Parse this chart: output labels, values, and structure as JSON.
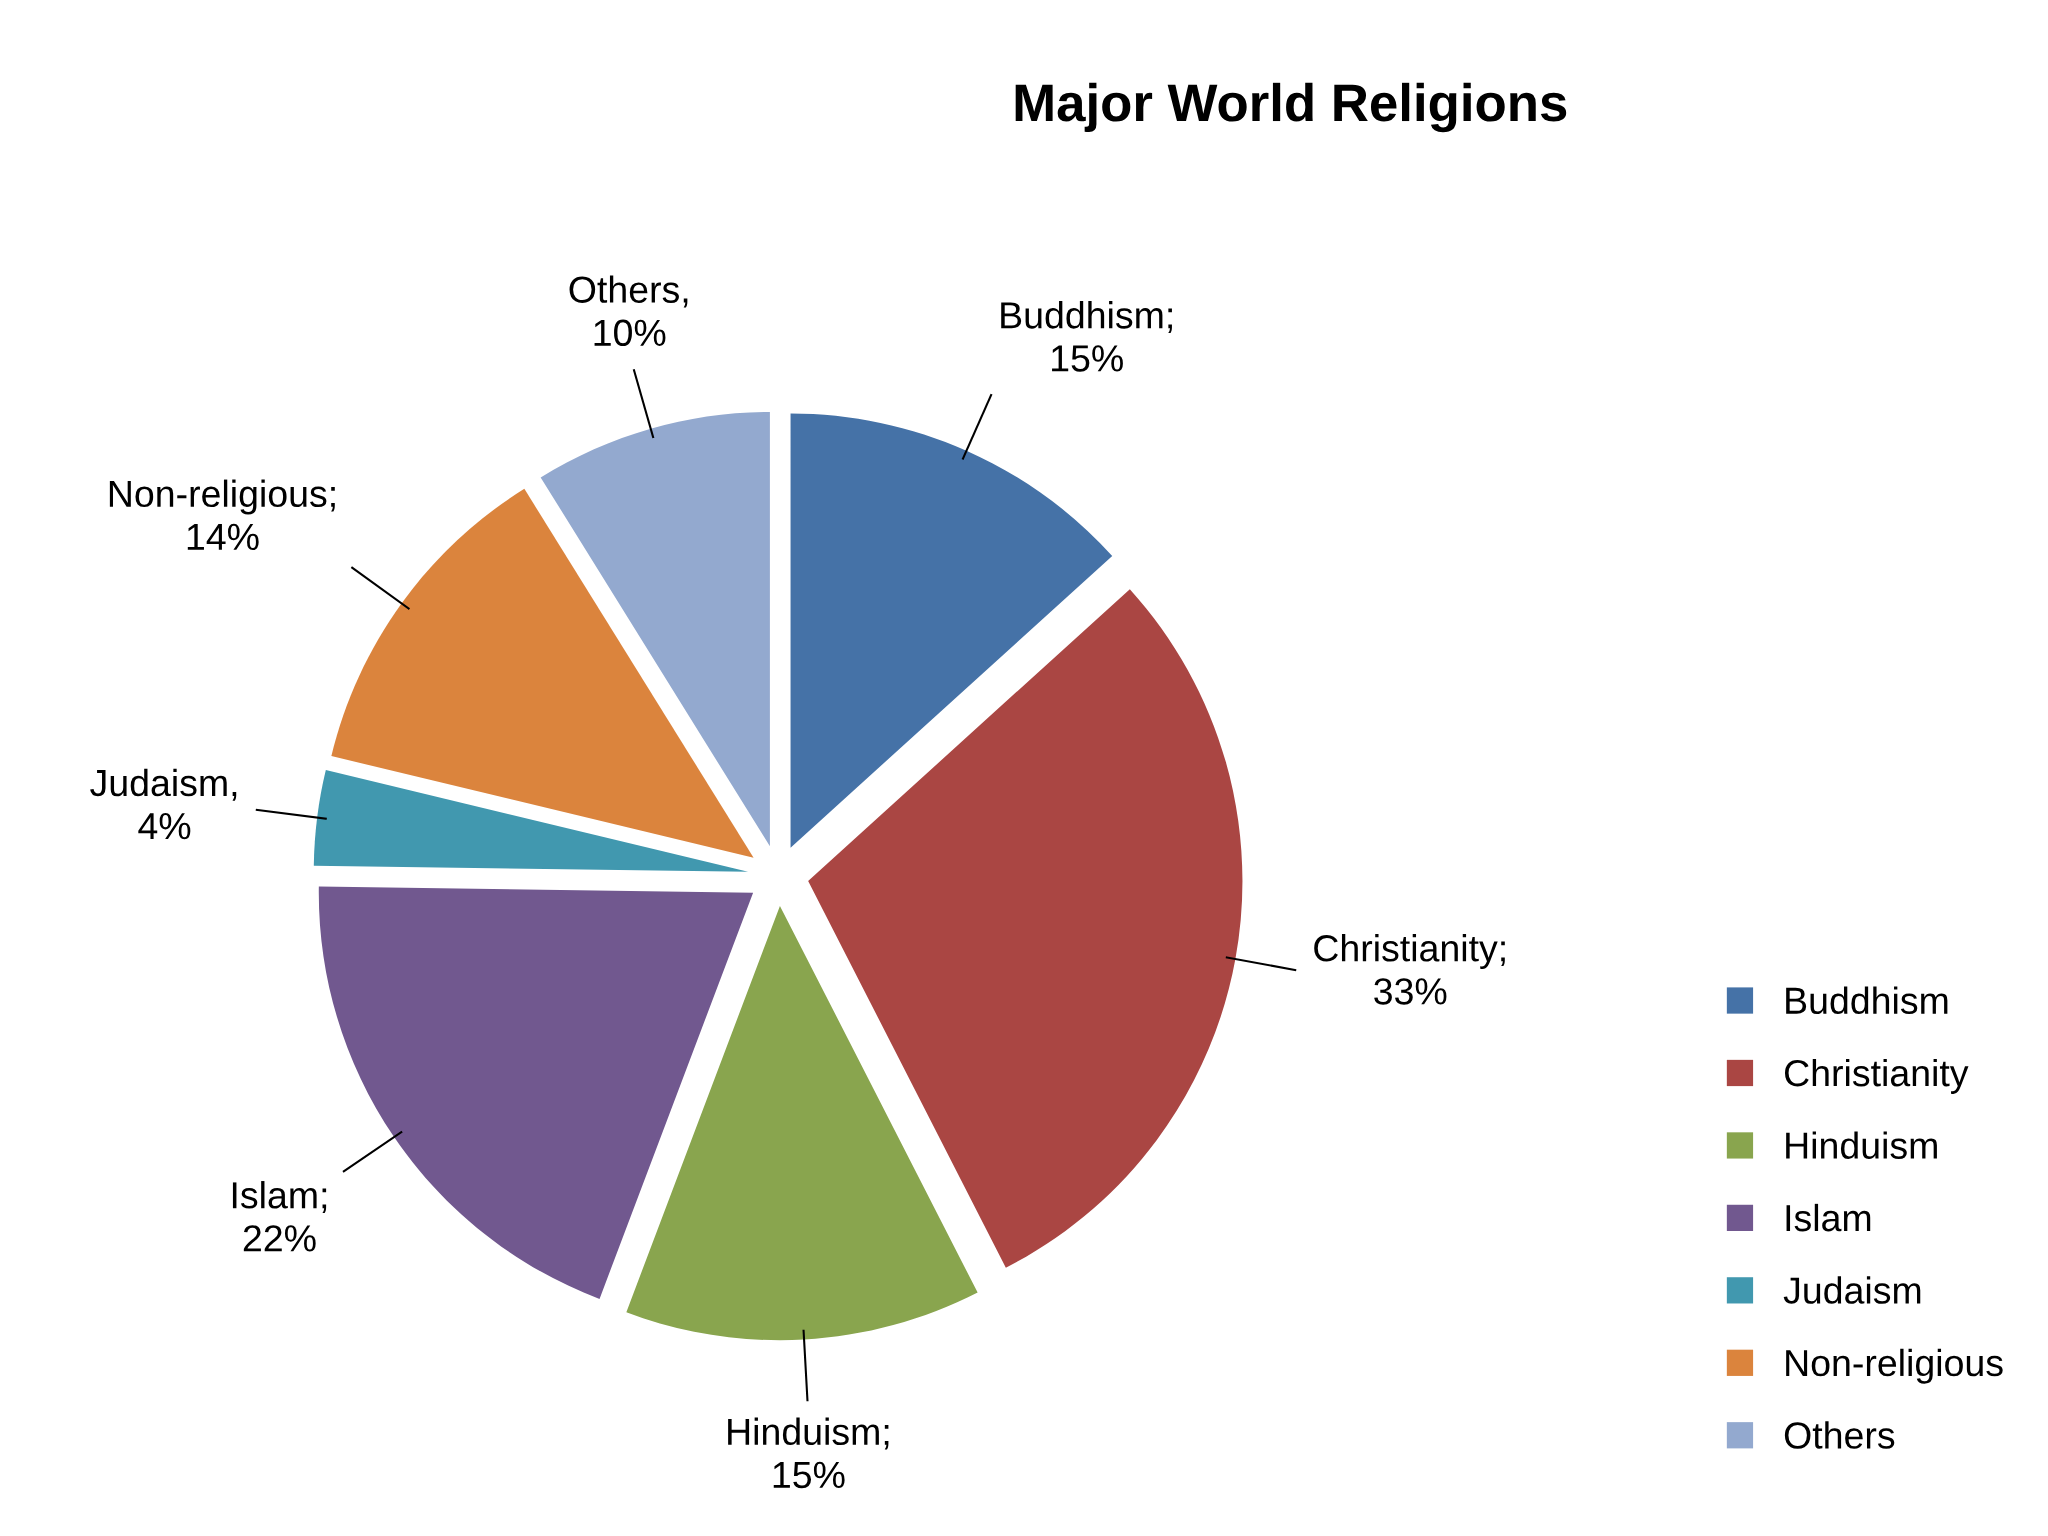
{
  "chart_data": {
    "type": "pie",
    "title": "Major World Religions",
    "categories": [
      "Buddhism",
      "Christianity",
      "Hinduism",
      "Islam",
      "Judaism",
      "Non-religious",
      "Others"
    ],
    "values": [
      15,
      33,
      15,
      22,
      4,
      14,
      10
    ],
    "colors": [
      "#4572a7",
      "#aa4643",
      "#89a54e",
      "#71588f",
      "#4198af",
      "#db843d",
      "#93a9cf"
    ],
    "value_labels": [
      "Buddhism; 15%",
      "Christianity; 33%",
      "Hinduism; 15%",
      "Islam; 22%",
      "Judaism, 4%",
      "Non-religious; 14%",
      "Others, 10%"
    ],
    "legend": "bottom right"
  }
}
